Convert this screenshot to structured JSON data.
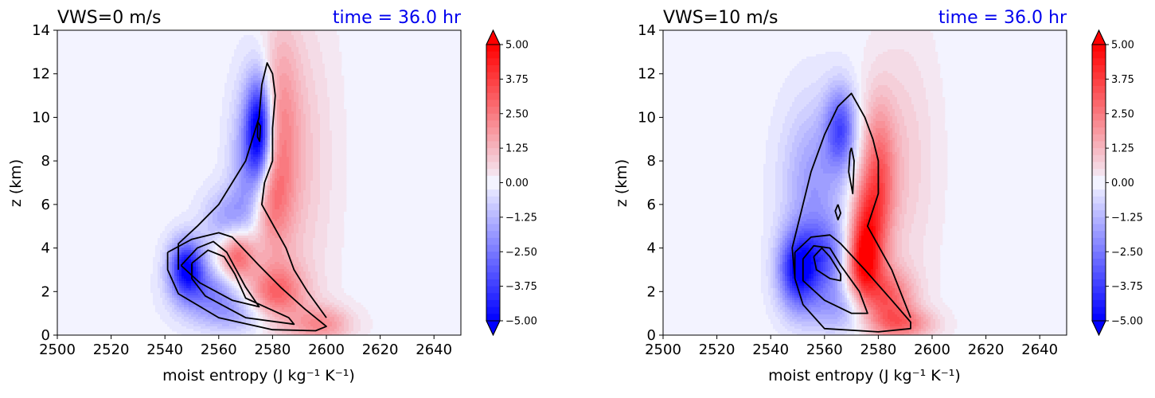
{
  "colors": {
    "background": "#f3f3ff",
    "negative": "#0000ff",
    "positive": "#ff0000",
    "contour": "#000000",
    "time_label": "#0000ee"
  },
  "colorbar": {
    "tick_labels": [
      "5.00",
      "3.75",
      "2.50",
      "1.25",
      "0.00",
      "−1.25",
      "−2.50",
      "−3.75",
      "−5.00"
    ],
    "min": -5,
    "max": 5,
    "levels": 40
  },
  "chart_data": [
    {
      "type": "heatmap",
      "title": "VWS=0 m/s",
      "time_label": "time = 36.0 hr",
      "xlabel": "moist entropy (J kg⁻¹ K⁻¹)",
      "ylabel": "z (km)",
      "xlim": [
        2500,
        2650
      ],
      "ylim": [
        0,
        14
      ],
      "xticks": [
        "2500",
        "2520",
        "2540",
        "2560",
        "2580",
        "2600",
        "2620",
        "2640"
      ],
      "yticks": [
        "0",
        "2",
        "4",
        "6",
        "8",
        "10",
        "12",
        "14"
      ],
      "blobs": [
        {
          "x": 2575,
          "z": 9.5,
          "sx": 3.2,
          "sz": 1.6,
          "v": -4.5
        },
        {
          "x": 2572,
          "z": 7.5,
          "sx": 5.0,
          "sz": 2.6,
          "v": -2.5
        },
        {
          "x": 2563,
          "z": 5.2,
          "sx": 6.0,
          "sz": 1.0,
          "v": -1.8
        },
        {
          "x": 2548,
          "z": 3.1,
          "sx": 4.5,
          "sz": 0.9,
          "v": -4.8
        },
        {
          "x": 2558,
          "z": 2.0,
          "sx": 9.0,
          "sz": 0.8,
          "v": -2.2
        },
        {
          "x": 2570,
          "z": 0.9,
          "sx": 12.0,
          "sz": 0.6,
          "v": -1.5
        },
        {
          "x": 2583,
          "z": 9.0,
          "sx": 5.0,
          "sz": 3.5,
          "v": 2.0
        },
        {
          "x": 2577,
          "z": 6.0,
          "sx": 5.0,
          "sz": 1.5,
          "v": 2.2
        },
        {
          "x": 2567,
          "z": 3.7,
          "sx": 5.0,
          "sz": 0.9,
          "v": 3.6
        },
        {
          "x": 2580,
          "z": 1.8,
          "sx": 8.0,
          "sz": 1.0,
          "v": 3.0
        },
        {
          "x": 2598,
          "z": 0.5,
          "sx": 8.0,
          "sz": 0.6,
          "v": 2.0
        },
        {
          "x": 2592,
          "z": 8.0,
          "sx": 8.0,
          "sz": 5.0,
          "v": 0.8
        }
      ],
      "contours": [
        [
          [
            2541,
            3.8
          ],
          [
            2550,
            4.4
          ],
          [
            2560,
            4.7
          ],
          [
            2565,
            4.5
          ],
          [
            2575,
            3.2
          ],
          [
            2583,
            2.2
          ],
          [
            2592,
            1.2
          ],
          [
            2598,
            0.6
          ],
          [
            2600,
            0.4
          ],
          [
            2596,
            0.2
          ],
          [
            2580,
            0.25
          ],
          [
            2560,
            0.8
          ],
          [
            2545,
            1.9
          ],
          [
            2541,
            3.0
          ],
          [
            2541,
            3.8
          ]
        ],
        [
          [
            2575,
            10.0
          ],
          [
            2570,
            8.0
          ],
          [
            2560,
            6.0
          ],
          [
            2552,
            5.0
          ],
          [
            2545,
            4.2
          ],
          [
            2545,
            3.0
          ]
        ],
        [
          [
            2575,
            10.0
          ],
          [
            2576,
            11.5
          ],
          [
            2578,
            12.5
          ],
          [
            2580,
            12.0
          ],
          [
            2581,
            11.0
          ],
          [
            2580,
            9.5
          ],
          [
            2580,
            8.0
          ],
          [
            2577,
            7.0
          ],
          [
            2576,
            6.0
          ],
          [
            2585,
            4.0
          ],
          [
            2588,
            3.0
          ],
          [
            2593,
            2.0
          ],
          [
            2600,
            0.8
          ]
        ],
        [
          [
            2546,
            3.2
          ],
          [
            2552,
            4.0
          ],
          [
            2558,
            4.3
          ],
          [
            2563,
            3.8
          ],
          [
            2570,
            2.2
          ],
          [
            2575,
            1.3
          ],
          [
            2565,
            1.6
          ],
          [
            2553,
            2.4
          ],
          [
            2546,
            3.2
          ]
        ],
        [
          [
            2550,
            3.3
          ],
          [
            2556,
            3.9
          ],
          [
            2562,
            3.6
          ],
          [
            2566,
            2.8
          ],
          [
            2570,
            1.7
          ],
          [
            2586,
            0.8
          ],
          [
            2588,
            0.5
          ],
          [
            2570,
            0.8
          ],
          [
            2555,
            1.8
          ],
          [
            2550,
            2.6
          ],
          [
            2550,
            3.3
          ]
        ],
        [
          [
            2574.5,
            9.8
          ],
          [
            2575.5,
            9.6
          ],
          [
            2575.2,
            8.9
          ],
          [
            2574.4,
            9.1
          ],
          [
            2574.5,
            9.8
          ]
        ]
      ]
    },
    {
      "type": "heatmap",
      "title": "VWS=10 m/s",
      "time_label": "time = 36.0 hr",
      "xlabel": "moist entropy (J kg⁻¹ K⁻¹)",
      "ylabel": "z (km)",
      "xlim": [
        2500,
        2650
      ],
      "ylim": [
        0,
        14
      ],
      "xticks": [
        "2500",
        "2520",
        "2540",
        "2560",
        "2580",
        "2600",
        "2620",
        "2640"
      ],
      "yticks": [
        "0",
        "2",
        "4",
        "6",
        "8",
        "10",
        "12",
        "14"
      ],
      "blobs": [
        {
          "x": 2566,
          "z": 9.5,
          "sx": 4.0,
          "sz": 1.3,
          "v": -3.2
        },
        {
          "x": 2556,
          "z": 7.0,
          "sx": 8.0,
          "sz": 2.5,
          "v": -1.8
        },
        {
          "x": 2550,
          "z": 3.0,
          "sx": 5.0,
          "sz": 1.2,
          "v": -4.5
        },
        {
          "x": 2560,
          "z": 3.5,
          "sx": 6.0,
          "sz": 1.2,
          "v": -2.5
        },
        {
          "x": 2566,
          "z": 1.2,
          "sx": 10.0,
          "sz": 0.8,
          "v": -1.5
        },
        {
          "x": 2580,
          "z": 7.0,
          "sx": 4.5,
          "sz": 2.5,
          "v": 3.0
        },
        {
          "x": 2575,
          "z": 5.0,
          "sx": 4.0,
          "sz": 1.5,
          "v": 2.5
        },
        {
          "x": 2574,
          "z": 3.2,
          "sx": 4.5,
          "sz": 1.2,
          "v": 3.5
        },
        {
          "x": 2583,
          "z": 1.6,
          "sx": 7.0,
          "sz": 1.0,
          "v": 3.0
        },
        {
          "x": 2590,
          "z": 0.5,
          "sx": 8.0,
          "sz": 0.5,
          "v": 2.0
        },
        {
          "x": 2590,
          "z": 8.0,
          "sx": 8.0,
          "sz": 4.0,
          "v": 0.8
        }
      ],
      "contours": [
        [
          [
            2549,
            3.8
          ],
          [
            2555,
            4.5
          ],
          [
            2562,
            4.6
          ],
          [
            2566,
            4.2
          ],
          [
            2575,
            3.0
          ],
          [
            2585,
            1.6
          ],
          [
            2592,
            0.6
          ],
          [
            2592,
            0.3
          ],
          [
            2580,
            0.15
          ],
          [
            2560,
            0.3
          ],
          [
            2552,
            1.4
          ],
          [
            2549,
            2.6
          ],
          [
            2549,
            3.8
          ]
        ],
        [
          [
            2549,
            2.6
          ],
          [
            2548,
            4.0
          ],
          [
            2551,
            5.5
          ],
          [
            2555,
            7.5
          ],
          [
            2560,
            9.2
          ],
          [
            2565,
            10.5
          ],
          [
            2570,
            11.1
          ],
          [
            2575,
            10.0
          ],
          [
            2578,
            9.0
          ],
          [
            2580,
            8.0
          ],
          [
            2580,
            6.5
          ],
          [
            2576,
            5.0
          ],
          [
            2585,
            3.0
          ],
          [
            2592,
            0.8
          ]
        ],
        [
          [
            2552,
            3.5
          ],
          [
            2556,
            4.1
          ],
          [
            2562,
            4.0
          ],
          [
            2566,
            3.2
          ],
          [
            2573,
            2.0
          ],
          [
            2576,
            1.0
          ],
          [
            2570,
            1.0
          ],
          [
            2560,
            1.6
          ],
          [
            2552,
            2.5
          ],
          [
            2552,
            3.5
          ]
        ],
        [
          [
            2556,
            3.6
          ],
          [
            2559,
            4.0
          ],
          [
            2562,
            3.6
          ],
          [
            2566,
            2.8
          ],
          [
            2566,
            2.5
          ],
          [
            2562,
            2.6
          ],
          [
            2557,
            3.0
          ],
          [
            2556,
            3.6
          ]
        ],
        [
          [
            2570,
            8.6
          ],
          [
            2571,
            8.0
          ],
          [
            2570.5,
            6.5
          ],
          [
            2569,
            7.5
          ],
          [
            2569.5,
            8.4
          ],
          [
            2570,
            8.6
          ]
        ],
        [
          [
            2565,
            6.0
          ],
          [
            2566,
            5.6
          ],
          [
            2565,
            5.3
          ],
          [
            2564,
            5.7
          ],
          [
            2565,
            6.0
          ]
        ]
      ]
    }
  ]
}
